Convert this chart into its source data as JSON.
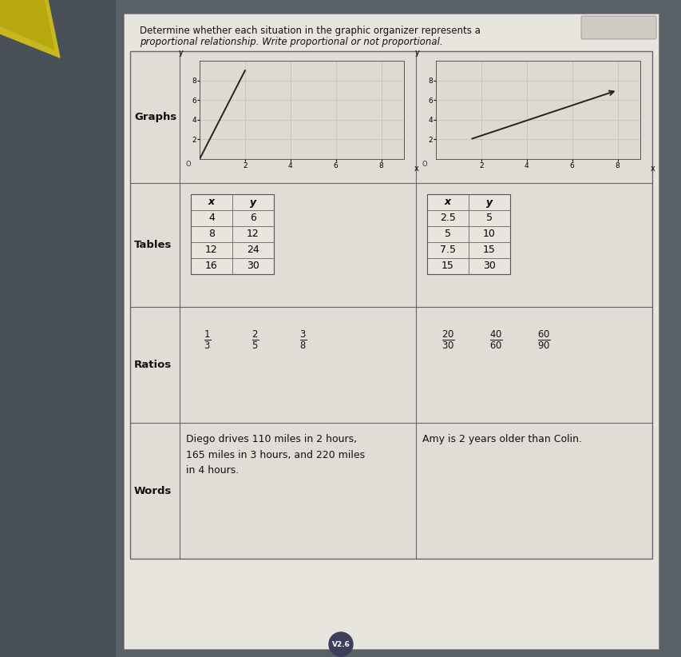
{
  "title_line1": "Determine whether each situation in the graphic organizer represents a",
  "title_line2": "proportional relationship. Write proportional or not proportional.",
  "background_color": "#5a6068",
  "paper_color": "#e8e5de",
  "table_bg": "#e0ddd6",
  "row_labels": [
    "Graphs",
    "Tables",
    "Ratios",
    "Words"
  ],
  "table1_data": [
    [
      "4",
      "6"
    ],
    [
      "8",
      "12"
    ],
    [
      "12",
      "24"
    ],
    [
      "16",
      "30"
    ]
  ],
  "table2_data": [
    [
      "2.5",
      "5"
    ],
    [
      "5",
      "10"
    ],
    [
      "7.5",
      "15"
    ],
    [
      "15",
      "30"
    ]
  ],
  "words_left": "Diego drives 110 miles in 2 hours,\n165 miles in 3 hours, and 220 miles\nin 4 hours.",
  "words_right": "Amy is 2 years older than Colin.",
  "badge_text": "V2.6",
  "badge_color": "#3d3d5c"
}
